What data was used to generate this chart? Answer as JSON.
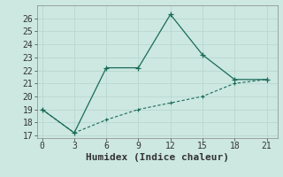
{
  "xlabel": "Humidex (Indice chaleur)",
  "background_color": "#cce8e0",
  "grid_color": "#b8d8d0",
  "line_color": "#1a6b5a",
  "line1_x": [
    0,
    3,
    6,
    9,
    12,
    15,
    18,
    21
  ],
  "line1_y": [
    19,
    17.2,
    22.2,
    22.2,
    26.3,
    23.2,
    21.3,
    21.3
  ],
  "line2_x": [
    0,
    3,
    6,
    9,
    12,
    15,
    18,
    21
  ],
  "line2_y": [
    19,
    17.2,
    18.2,
    19.0,
    19.5,
    20.0,
    21.0,
    21.3
  ],
  "xlim": [
    -0.5,
    22
  ],
  "ylim": [
    16.8,
    27.0
  ],
  "xticks": [
    0,
    3,
    6,
    9,
    12,
    15,
    18,
    21
  ],
  "yticks": [
    17,
    18,
    19,
    20,
    21,
    22,
    23,
    24,
    25,
    26
  ],
  "xlabel_fontsize": 8,
  "tick_fontsize": 7,
  "spine_color": "#888888"
}
